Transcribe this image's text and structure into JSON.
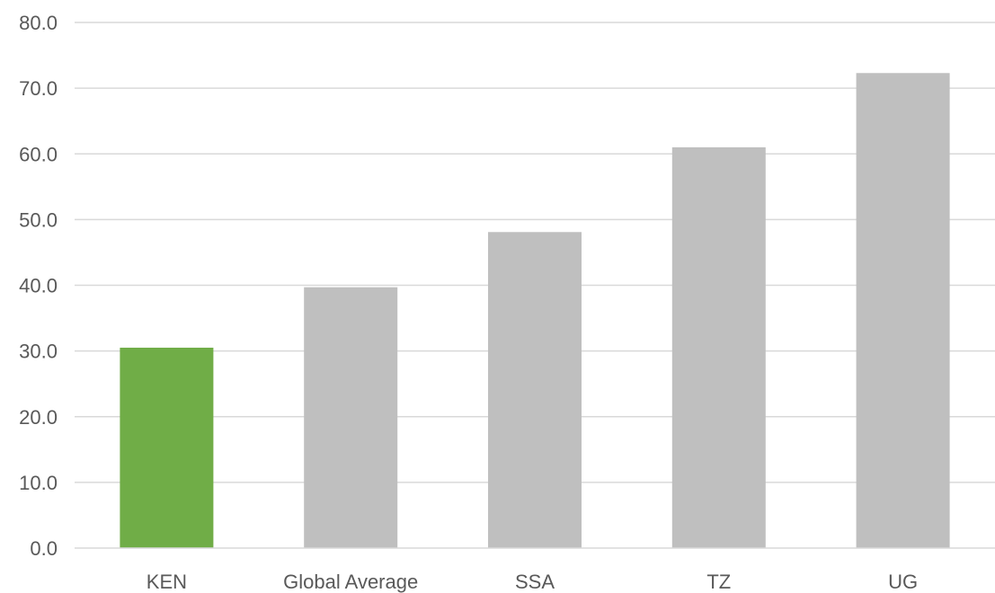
{
  "chart_data": {
    "type": "bar",
    "categories": [
      "KEN",
      "Global Average",
      "SSA",
      "TZ",
      "UG"
    ],
    "values": [
      30.5,
      39.7,
      48.1,
      61.0,
      72.3
    ],
    "bar_colors": [
      "#70ad47",
      "#bfbfbf",
      "#bfbfbf",
      "#bfbfbf",
      "#bfbfbf"
    ],
    "ylim": [
      0,
      80
    ],
    "yticks": [
      "0.0",
      "10.0",
      "20.0",
      "30.0",
      "40.0",
      "50.0",
      "60.0",
      "70.0",
      "80.0"
    ],
    "title": "",
    "xlabel": "",
    "ylabel": "",
    "grid": true,
    "legend": "none"
  }
}
